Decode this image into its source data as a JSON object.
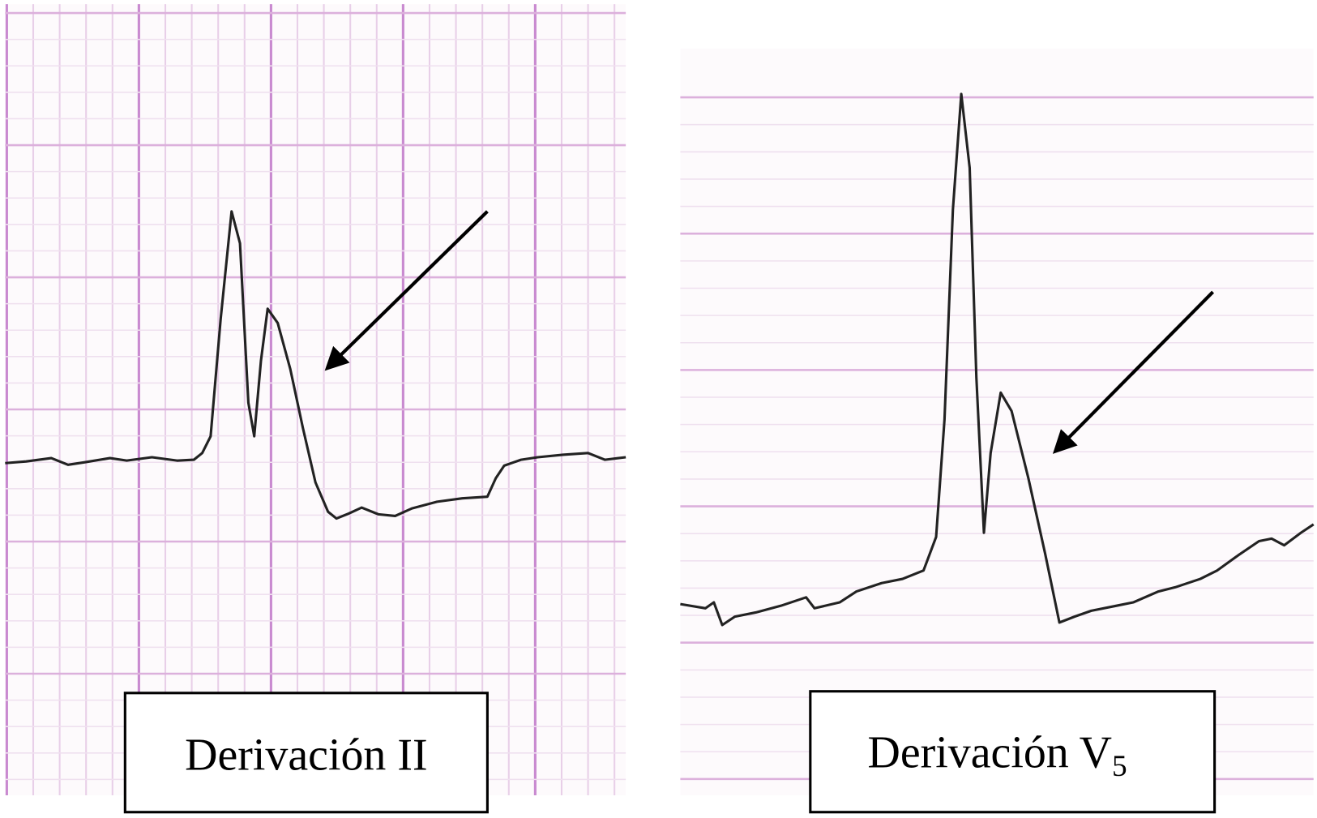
{
  "panels": [
    {
      "label": "Derivación II"
    },
    {
      "label": "Derivación V",
      "subscript": "5"
    }
  ]
}
